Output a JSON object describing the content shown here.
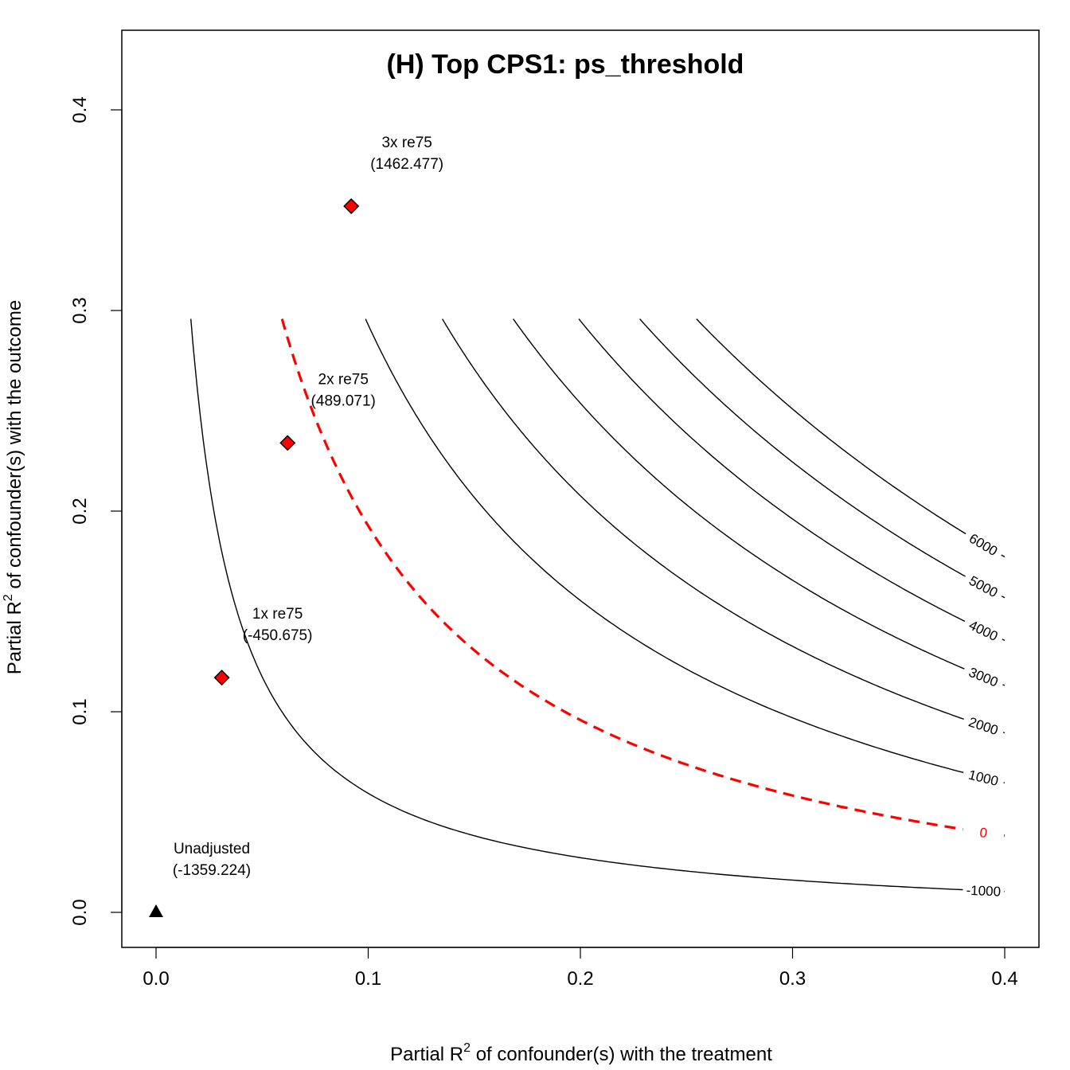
{
  "chart_data": {
    "type": "contour",
    "title": "(H) Top CPS1: ps_threshold",
    "xlabel_pre": "Partial R",
    "xlabel_sup": "2",
    "xlabel_post": " of confounder(s) with the treatment",
    "ylabel_pre": "Partial R",
    "ylabel_sup": "2",
    "ylabel_post": " of confounder(s) with the outcome",
    "xlim": [
      0,
      0.4
    ],
    "ylim": [
      0,
      0.4
    ],
    "x_ticks": [
      0.0,
      0.1,
      0.2,
      0.3,
      0.4
    ],
    "x_tick_labels": [
      "0.0",
      "0.1",
      "0.2",
      "0.3",
      "0.4"
    ],
    "y_ticks": [
      0.0,
      0.1,
      0.2,
      0.3,
      0.4
    ],
    "y_tick_labels": [
      "0.0",
      "0.1",
      "0.2",
      "0.3",
      "0.4"
    ],
    "contour_color": "#000000",
    "threshold_color": "#ff0000",
    "contours": [
      {
        "level": -1000,
        "label": "-1000",
        "threshold": false
      },
      {
        "level": 0,
        "label": "0",
        "threshold": true
      },
      {
        "level": 1000,
        "label": "1000",
        "threshold": false
      },
      {
        "level": 2000,
        "label": "2000",
        "threshold": false
      },
      {
        "level": 3000,
        "label": "3000",
        "threshold": false
      },
      {
        "level": 4000,
        "label": "4000",
        "threshold": false
      },
      {
        "level": 5000,
        "label": "5000",
        "threshold": false
      },
      {
        "level": 6000,
        "label": "6000",
        "threshold": false
      }
    ],
    "points": [
      {
        "x": 0.0,
        "y": 0.0,
        "marker": "triangle",
        "label1": "Unadjusted",
        "label2": "(-1359.224)"
      },
      {
        "x": 0.031,
        "y": 0.117,
        "marker": "diamond",
        "label1": "1x re75",
        "label2": "(-450.675)"
      },
      {
        "x": 0.062,
        "y": 0.234,
        "marker": "diamond",
        "label1": "2x re75",
        "label2": "(489.071)"
      },
      {
        "x": 0.092,
        "y": 0.352,
        "marker": "diamond",
        "label1": "3x re75",
        "label2": "(1462.477)"
      }
    ]
  }
}
